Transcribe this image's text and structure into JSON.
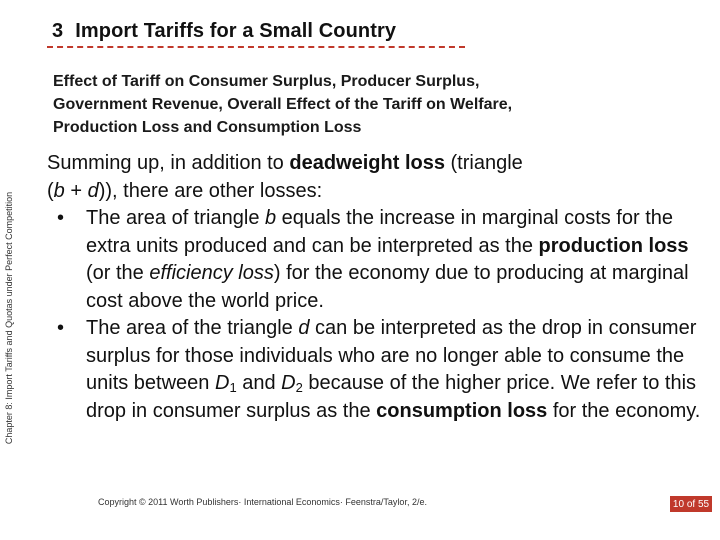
{
  "side_label": "Chapter 8: Import Tariffs and Quotas under Perfect Competition",
  "header": {
    "number": "3",
    "title": "Import Tariffs for a Small Country"
  },
  "subtitle": {
    "line1": "Effect of Tariff on Consumer Surplus, Producer Surplus,",
    "line2": "Government Revenue, Overall Effect of the Tariff on Welfare,",
    "line3": "Production Loss and Consumption Loss"
  },
  "intro": {
    "a": "Summing up, in addition to ",
    "b": "deadweight loss",
    "c": " (triangle",
    "d": "(",
    "e": "b",
    "f": " + ",
    "g": "d",
    "h": ")), there are other losses:"
  },
  "bullets": {
    "symbol": "•",
    "item1": {
      "a": "The area of triangle ",
      "b": "b",
      "c": " equals the increase in marginal costs for the extra units produced and can be interpreted as the ",
      "d": "production loss",
      "e": " (or the ",
      "f": "efficiency loss",
      "g": ") for the economy due to producing at marginal cost above the world price."
    },
    "item2": {
      "a": "The area of the triangle ",
      "b": "d",
      "c": " can be interpreted as the drop in consumer surplus for those individuals who are no longer able to consume the units between ",
      "d1": "D",
      "d1_sub": "1",
      "e": " and ",
      "d2": "D",
      "d2_sub": "2",
      "f": " because of the higher price. We refer to this drop in consumer surplus as the ",
      "g": "consumption loss",
      "h": " for the economy."
    }
  },
  "footer": "Copyright © 2011 Worth Publishers· International Economics· Feenstra/Taylor, 2/e.",
  "page_number": "10 of 55",
  "colors": {
    "accent": "#c0392b",
    "text": "#111111"
  }
}
